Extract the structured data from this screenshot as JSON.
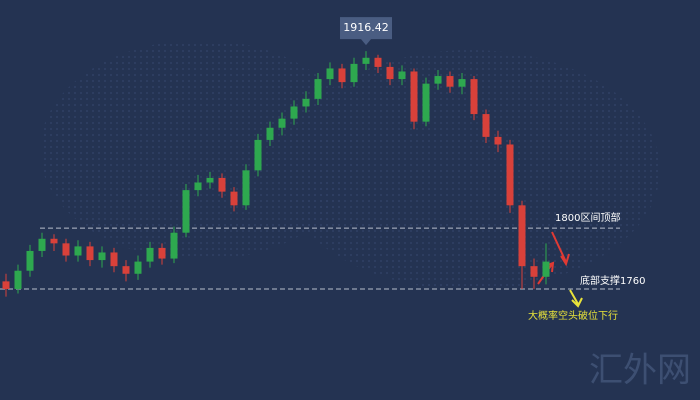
{
  "chart_data": {
    "type": "candlestick",
    "ylim": [
      1687,
      1950
    ],
    "up_color": "#2ea84f",
    "down_color": "#d9413a",
    "open": [
      1765,
      1760,
      1772,
      1785,
      1793,
      1790,
      1782,
      1788,
      1779,
      1784,
      1775,
      1770,
      1778,
      1787,
      1780,
      1797,
      1825,
      1830,
      1833,
      1824,
      1815,
      1838,
      1858,
      1866,
      1872,
      1880,
      1885,
      1898,
      1905,
      1896,
      1908,
      1912,
      1906,
      1898,
      1903,
      1870,
      1895,
      1900,
      1893,
      1898,
      1875,
      1860,
      1855,
      1815,
      1775,
      1768
    ],
    "high": [
      1770,
      1776,
      1789,
      1797,
      1796,
      1793,
      1792,
      1791,
      1788,
      1787,
      1779,
      1782,
      1791,
      1790,
      1801,
      1829,
      1835,
      1837,
      1836,
      1827,
      1842,
      1862,
      1870,
      1876,
      1884,
      1890,
      1902,
      1909,
      1908,
      1912,
      1916.42,
      1914,
      1909,
      1907,
      1905,
      1899,
      1904,
      1903,
      1902,
      1900,
      1878,
      1864,
      1858,
      1818,
      1780,
      1790
    ],
    "low": [
      1755,
      1757,
      1768,
      1781,
      1785,
      1778,
      1778,
      1775,
      1774,
      1771,
      1765,
      1766,
      1774,
      1776,
      1777,
      1794,
      1821,
      1826,
      1820,
      1811,
      1812,
      1834,
      1854,
      1861,
      1868,
      1876,
      1881,
      1894,
      1892,
      1893,
      1904,
      1902,
      1894,
      1894,
      1865,
      1867,
      1891,
      1889,
      1888,
      1871,
      1856,
      1850,
      1810,
      1760,
      1760,
      1763
    ],
    "close": [
      1760,
      1772,
      1785,
      1793,
      1790,
      1782,
      1788,
      1779,
      1784,
      1775,
      1770,
      1778,
      1787,
      1780,
      1797,
      1825,
      1830,
      1833,
      1824,
      1815,
      1838,
      1858,
      1866,
      1872,
      1880,
      1885,
      1898,
      1905,
      1896,
      1908,
      1912,
      1906,
      1898,
      1903,
      1870,
      1895,
      1900,
      1893,
      1898,
      1875,
      1860,
      1855,
      1815,
      1775,
      1768,
      1778
    ],
    "peak_index": 30,
    "levels": [
      {
        "value": 1800,
        "label": "1800区间顶部"
      },
      {
        "value": 1760,
        "label": "底部支撑1760"
      }
    ],
    "annotation": "大概率空头破位下行",
    "watermark": "汇外网"
  }
}
